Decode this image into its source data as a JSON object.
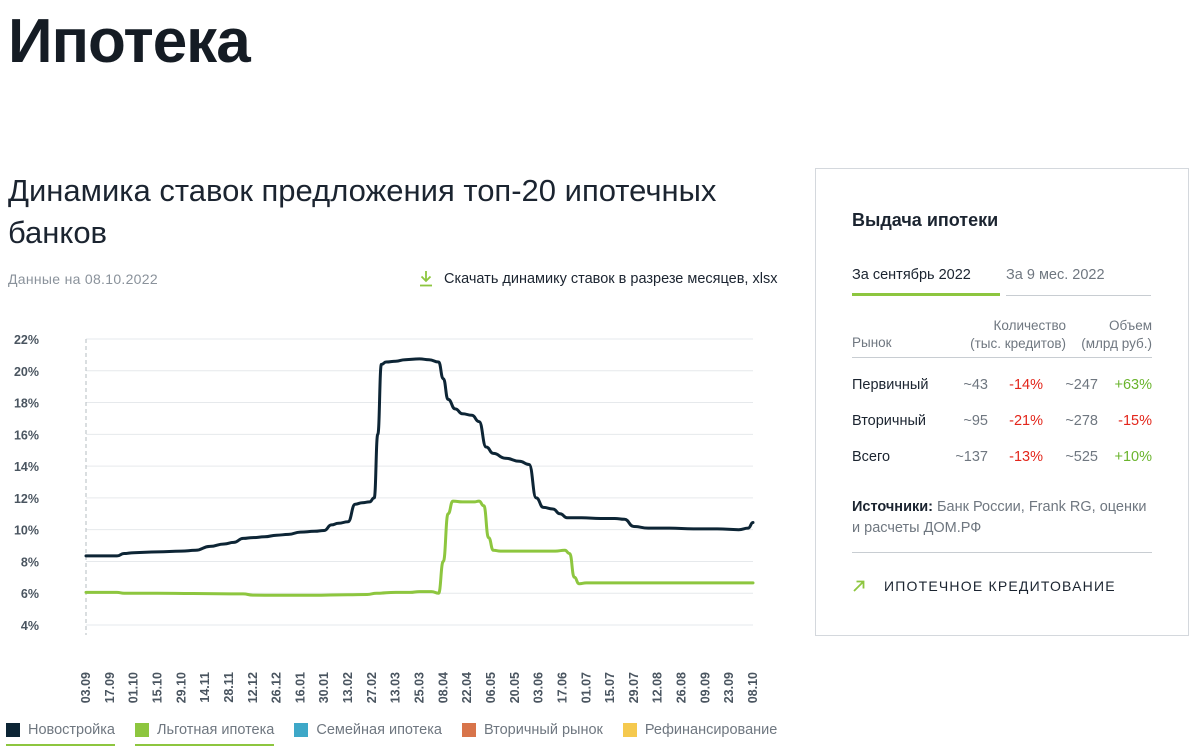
{
  "page": {
    "title": "Ипотека"
  },
  "chart_section": {
    "title": "Динамика ставок предложения топ-20 ипотечных банков",
    "date_note": "Данные на 08.10.2022",
    "download_label": "Скачать динамику ставок в разрезе месяцев, xlsx"
  },
  "colors": {
    "novostroyka": "#0d2535",
    "lgotnaya": "#8dc63f",
    "semeynaya": "#3ea8c8",
    "vtorichny": "#d8744a",
    "refinans": "#f5c94e",
    "negative": "#e3261b",
    "positive": "#6ab42d"
  },
  "chart_data": {
    "type": "line",
    "title": "",
    "xlabel": "",
    "ylabel": "",
    "ylim": [
      4,
      22
    ],
    "y_ticks": [
      4,
      6,
      8,
      10,
      12,
      14,
      16,
      18,
      20,
      22
    ],
    "y_tick_labels": [
      "4%",
      "6%",
      "8%",
      "10%",
      "12%",
      "14%",
      "16%",
      "18%",
      "20%",
      "22%"
    ],
    "x_tick_labels": [
      "03.09",
      "17.09",
      "01.10",
      "15.10",
      "29.10",
      "14.11",
      "28.11",
      "12.12",
      "26.12",
      "16.01",
      "30.01",
      "13.02",
      "27.02",
      "13.03",
      "25.03",
      "08.04",
      "22.04",
      "06.05",
      "20.05",
      "03.06",
      "17.06",
      "01.07",
      "15.07",
      "29.07",
      "12.08",
      "26.08",
      "09.09",
      "23.09",
      "08.10"
    ],
    "grid": true,
    "legend": "bottom",
    "series": [
      {
        "name": "Новостройка",
        "color_key": "novostroyka",
        "points": [
          [
            0,
            8.35
          ],
          [
            0.6,
            8.35
          ],
          [
            1.3,
            8.35
          ],
          [
            1.6,
            8.5
          ],
          [
            2.0,
            8.55
          ],
          [
            3,
            8.6
          ],
          [
            4,
            8.65
          ],
          [
            4.6,
            8.7
          ],
          [
            5.2,
            8.95
          ],
          [
            5.8,
            9.1
          ],
          [
            6.2,
            9.2
          ],
          [
            6.6,
            9.45
          ],
          [
            7,
            9.5
          ],
          [
            7.5,
            9.55
          ],
          [
            8,
            9.65
          ],
          [
            8.5,
            9.7
          ],
          [
            9,
            9.85
          ],
          [
            9.6,
            9.9
          ],
          [
            10,
            9.95
          ],
          [
            10.3,
            10.3
          ],
          [
            10.6,
            10.4
          ],
          [
            11,
            10.5
          ],
          [
            11.3,
            11.6
          ],
          [
            11.6,
            11.7
          ],
          [
            11.9,
            11.75
          ],
          [
            12.1,
            12.0
          ],
          [
            12.25,
            16.0
          ],
          [
            12.4,
            20.4
          ],
          [
            12.6,
            20.55
          ],
          [
            13,
            20.6
          ],
          [
            13.4,
            20.7
          ],
          [
            14,
            20.75
          ],
          [
            14.4,
            20.7
          ],
          [
            14.8,
            20.55
          ],
          [
            15.0,
            19.5
          ],
          [
            15.2,
            18.2
          ],
          [
            15.5,
            17.6
          ],
          [
            15.8,
            17.3
          ],
          [
            16.2,
            17.2
          ],
          [
            16.5,
            16.8
          ],
          [
            16.8,
            15.2
          ],
          [
            17.1,
            14.8
          ],
          [
            17.6,
            14.5
          ],
          [
            18.2,
            14.3
          ],
          [
            18.6,
            14.1
          ],
          [
            18.9,
            12.0
          ],
          [
            19.2,
            11.4
          ],
          [
            19.6,
            11.3
          ],
          [
            19.9,
            11.0
          ],
          [
            20.2,
            10.75
          ],
          [
            20.8,
            10.75
          ],
          [
            21.6,
            10.7
          ],
          [
            22.2,
            10.7
          ],
          [
            22.6,
            10.65
          ],
          [
            23,
            10.2
          ],
          [
            23.6,
            10.1
          ],
          [
            24.5,
            10.1
          ],
          [
            25.5,
            10.05
          ],
          [
            26.5,
            10.05
          ],
          [
            27.4,
            10.0
          ],
          [
            27.8,
            10.1
          ],
          [
            28,
            10.45
          ]
        ]
      },
      {
        "name": "Льготная ипотека",
        "color_key": "lgotnaya",
        "points": [
          [
            0,
            6.05
          ],
          [
            1.3,
            6.05
          ],
          [
            1.6,
            6.0
          ],
          [
            3,
            6.0
          ],
          [
            4.5,
            5.98
          ],
          [
            6.6,
            5.96
          ],
          [
            7.0,
            5.88
          ],
          [
            8,
            5.87
          ],
          [
            9.5,
            5.87
          ],
          [
            11,
            5.9
          ],
          [
            11.8,
            5.92
          ],
          [
            12.2,
            6.0
          ],
          [
            13,
            6.05
          ],
          [
            13.6,
            6.05
          ],
          [
            14.0,
            6.1
          ],
          [
            14.5,
            6.1
          ],
          [
            14.8,
            6.0
          ],
          [
            15.0,
            8.0
          ],
          [
            15.2,
            11.0
          ],
          [
            15.4,
            11.8
          ],
          [
            15.8,
            11.75
          ],
          [
            16.3,
            11.75
          ],
          [
            16.5,
            11.8
          ],
          [
            16.7,
            11.5
          ],
          [
            16.9,
            9.5
          ],
          [
            17.1,
            8.7
          ],
          [
            17.4,
            8.65
          ],
          [
            18,
            8.65
          ],
          [
            19,
            8.65
          ],
          [
            19.7,
            8.65
          ],
          [
            20.1,
            8.7
          ],
          [
            20.3,
            8.5
          ],
          [
            20.5,
            7.0
          ],
          [
            20.7,
            6.6
          ],
          [
            21,
            6.65
          ],
          [
            22,
            6.65
          ],
          [
            24,
            6.65
          ],
          [
            26,
            6.65
          ],
          [
            28,
            6.65
          ]
        ]
      }
    ]
  },
  "legend": [
    {
      "label": "Новостройка",
      "color_key": "novostroyka",
      "active": true
    },
    {
      "label": "Льготная ипотека",
      "color_key": "lgotnaya",
      "active": true
    },
    {
      "label": "Семейная ипотека",
      "color_key": "semeynaya",
      "active": false
    },
    {
      "label": "Вторичный рынок",
      "color_key": "vtorichny",
      "active": false
    },
    {
      "label": "Рефинансирование",
      "color_key": "refinans",
      "active": false
    }
  ],
  "card": {
    "title": "Выдача ипотеки",
    "tab_active": "За сентябрь 2022",
    "tab_inactive": "За 9 мес. 2022",
    "col_market": "Рынок",
    "col_count_l1": "Количество",
    "col_count_l2": "(тыс. кредитов)",
    "col_volume_l1": "Объем",
    "col_volume_l2": "(млрд руб.)",
    "rows": [
      {
        "name": "Первичный",
        "count": "~43",
        "count_change": "-14%",
        "count_sign": "neg",
        "volume": "~247",
        "volume_change": "+63%",
        "volume_sign": "pos"
      },
      {
        "name": "Вторичный",
        "count": "~95",
        "count_change": "-21%",
        "count_sign": "neg",
        "volume": "~278",
        "volume_change": "-15%",
        "volume_sign": "neg"
      },
      {
        "name": "Всего",
        "count": "~137",
        "count_change": "-13%",
        "count_sign": "neg",
        "volume": "~525",
        "volume_change": "+10%",
        "volume_sign": "pos"
      }
    ],
    "sources_label": "Источники:",
    "sources_text": "Банк России, Frank RG, оценки и расчеты ДОМ.РФ",
    "link_label": "ИПОТЕЧНОЕ КРЕДИТОВАНИЕ"
  }
}
